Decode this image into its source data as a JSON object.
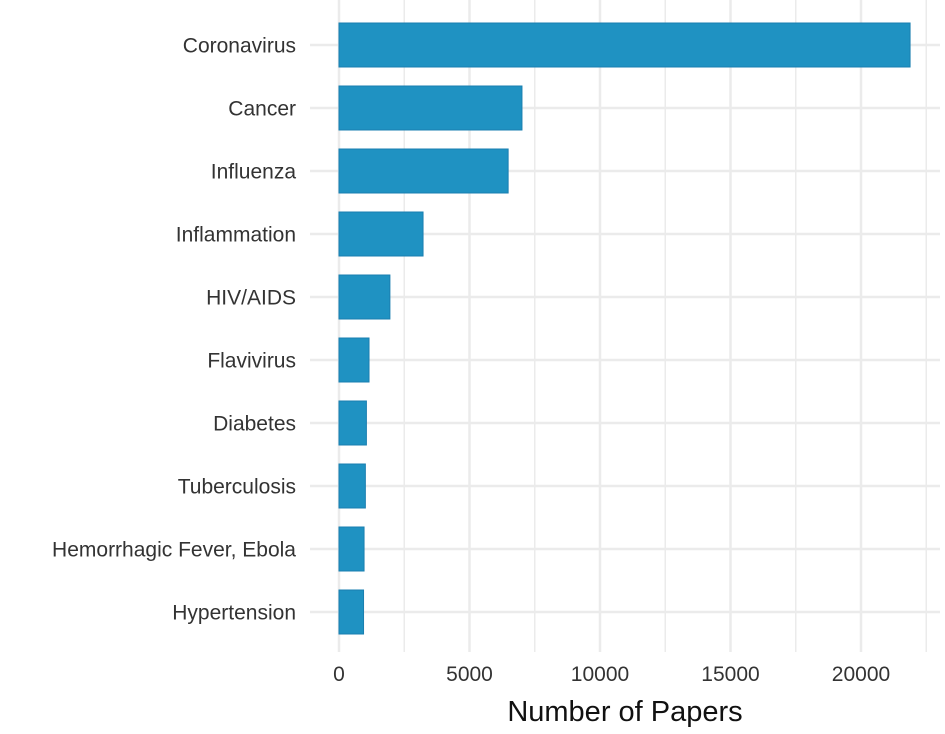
{
  "chart_data": {
    "type": "bar",
    "orientation": "horizontal",
    "title": "",
    "xlabel": "Number of Papers",
    "ylabel": "",
    "categories": [
      "Coronavirus",
      "Cancer",
      "Influenza",
      "Inflammation",
      "HIV/AIDS",
      "Flavivirus",
      "Diabetes",
      "Tuberculosis",
      "Hemorrhagic Fever, Ebola",
      "Hypertension"
    ],
    "values": [
      21880,
      7010,
      6480,
      3220,
      1950,
      1150,
      1050,
      1010,
      960,
      940
    ],
    "xlim": [
      -1250,
      22800
    ],
    "xticks": [
      0,
      5000,
      10000,
      15000,
      20000
    ],
    "xtick_labels": [
      "0",
      "5000",
      "10000",
      "15000",
      "20000"
    ],
    "grid": true,
    "legend": null,
    "bar_color": "#1f92c2",
    "bar_edge_color": "#1a7fb0",
    "grid_color": "#ebebeb"
  }
}
